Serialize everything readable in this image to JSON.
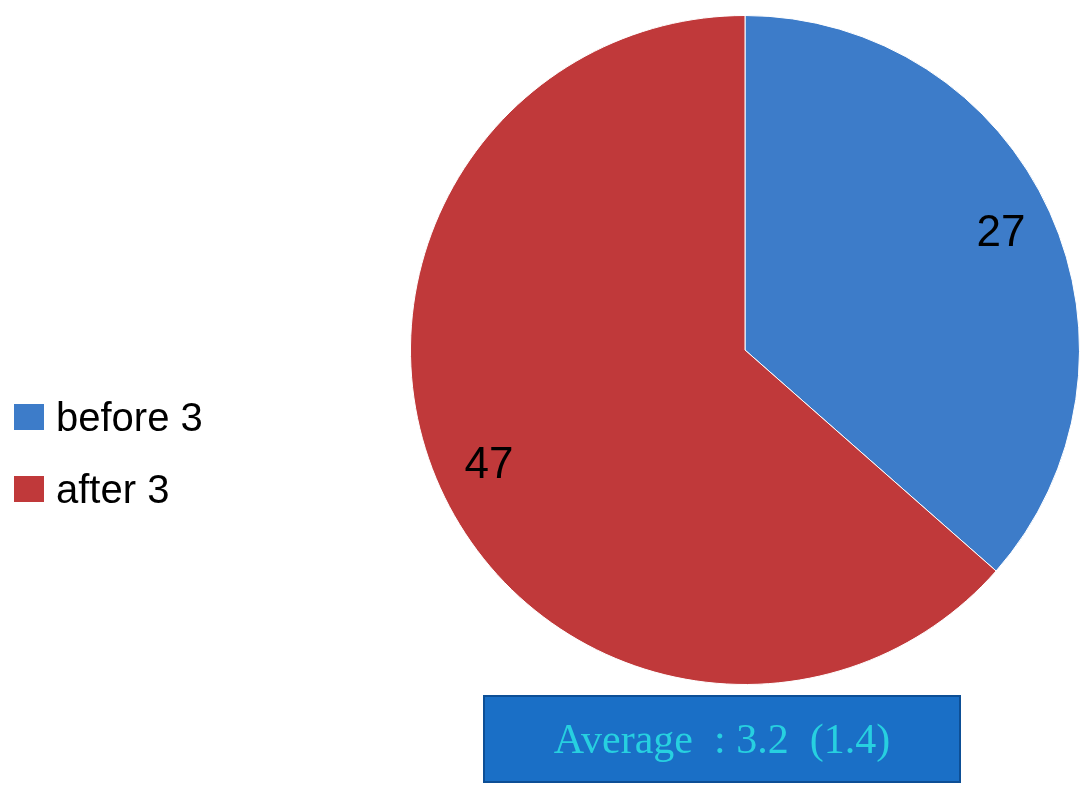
{
  "chart_data": {
    "type": "pie",
    "categories": [
      "before 3",
      "after 3"
    ],
    "values": [
      27,
      47
    ],
    "colors": [
      "#3d7cc9",
      "#c0393a"
    ],
    "data_labels": true,
    "legend": "left",
    "annotations": [
      "Average  : 3.2  (1.4)"
    ]
  }
}
